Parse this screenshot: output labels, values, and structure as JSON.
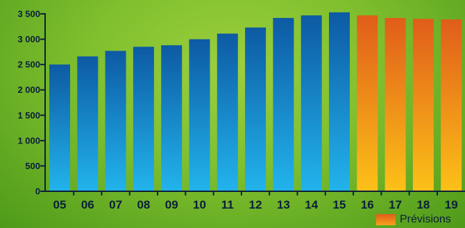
{
  "chart_data": {
    "type": "bar",
    "categories": [
      "05",
      "06",
      "07",
      "08",
      "09",
      "10",
      "11",
      "12",
      "13",
      "14",
      "15",
      "16",
      "17",
      "18",
      "19"
    ],
    "values": [
      2500,
      2660,
      2770,
      2850,
      2880,
      3000,
      3110,
      3230,
      3420,
      3470,
      3530,
      3470,
      3420,
      3400,
      3390
    ],
    "ylim": [
      0,
      3500
    ],
    "yticks": [
      0,
      500,
      1000,
      1500,
      2000,
      2500,
      3000,
      3500
    ],
    "ytick_labels": [
      "0",
      "500",
      "1 000",
      "1 500",
      "2 000",
      "2 500",
      "3 000",
      "3 500"
    ],
    "forecast_from": "16",
    "colors": {
      "actual_top": "#0d5aa3",
      "actual_bottom": "#22b4ec",
      "forecast_top": "#e05d1a",
      "forecast_bottom": "#fcc118"
    },
    "legend": [
      {
        "label": "Prévisions",
        "color": "#f08a1a"
      }
    ],
    "legend_position": "bottom-right",
    "grid": false,
    "xlabel": "",
    "ylabel": "",
    "title": ""
  }
}
